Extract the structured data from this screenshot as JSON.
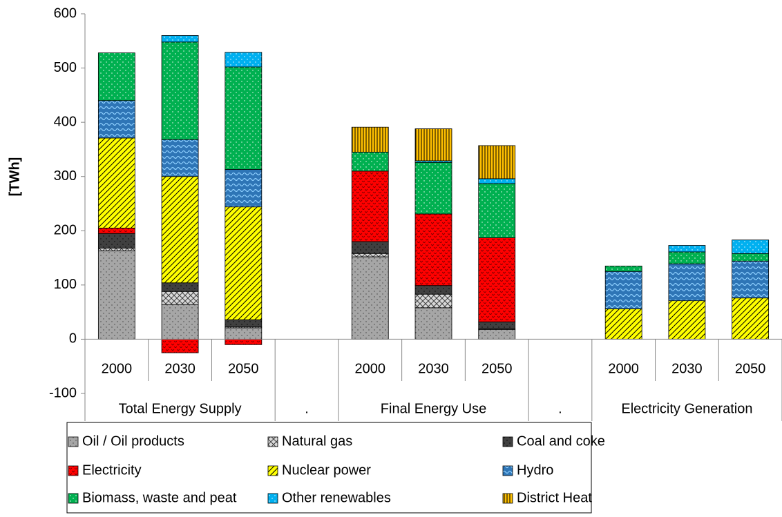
{
  "chart_data": {
    "type": "stacked-bar",
    "y_label": "[TWh]",
    "groups": [
      {
        "name": "Total Energy Supply",
        "categories": [
          "2000",
          "2030",
          "2050"
        ]
      },
      {
        "name": ".",
        "categories": [
          null
        ]
      },
      {
        "name": "Final Energy Use",
        "categories": [
          "2000",
          "2030",
          "2050"
        ]
      },
      {
        "name": ".",
        "categories": [
          null
        ]
      },
      {
        "name": "Electricity Generation",
        "categories": [
          "2000",
          "2030",
          "2050"
        ]
      }
    ],
    "series": [
      {
        "name": "Oil / Oil products",
        "color": "#a6a6a6",
        "values": [
          163,
          64,
          21,
          null,
          152,
          58,
          18,
          null,
          0,
          0,
          0
        ]
      },
      {
        "name": "Natural gas",
        "color": "#d9d9d9",
        "values": [
          5,
          24,
          2,
          null,
          6,
          25,
          1,
          null,
          0,
          0,
          0
        ]
      },
      {
        "name": "Coal and coke",
        "color": "#404040",
        "values": [
          27,
          16,
          13,
          null,
          22,
          16,
          13,
          null,
          0,
          0,
          0
        ]
      },
      {
        "name": "Electricity",
        "color": "#ff0000",
        "values": [
          10,
          -25,
          -10,
          null,
          130,
          132,
          155,
          null,
          0,
          0,
          0
        ]
      },
      {
        "name": "Nuclear power",
        "color": "#ffff00",
        "values": [
          166,
          196,
          208,
          null,
          0,
          0,
          0,
          null,
          56,
          71,
          76
        ]
      },
      {
        "name": "Hydro",
        "color": "#2e75b6",
        "values": [
          69,
          68,
          69,
          null,
          0,
          0,
          0,
          null,
          69,
          68,
          68
        ]
      },
      {
        "name": "Biomass, waste and peat",
        "color": "#00b050",
        "values": [
          88,
          180,
          189,
          null,
          35,
          95,
          100,
          null,
          10,
          22,
          14
        ]
      },
      {
        "name": "Other renewables",
        "color": "#00b0f0",
        "values": [
          0,
          12,
          27,
          null,
          0,
          3,
          9,
          null,
          0,
          12,
          25
        ]
      },
      {
        "name": "District Heat",
        "color": "#ffc000",
        "values": [
          0,
          0,
          0,
          null,
          46,
          59,
          61,
          null,
          0,
          0,
          0
        ]
      }
    ],
    "ylim": [
      -100,
      600
    ],
    "yticks": [
      -100,
      0,
      100,
      200,
      300,
      400,
      500,
      600
    ],
    "grid": false
  }
}
